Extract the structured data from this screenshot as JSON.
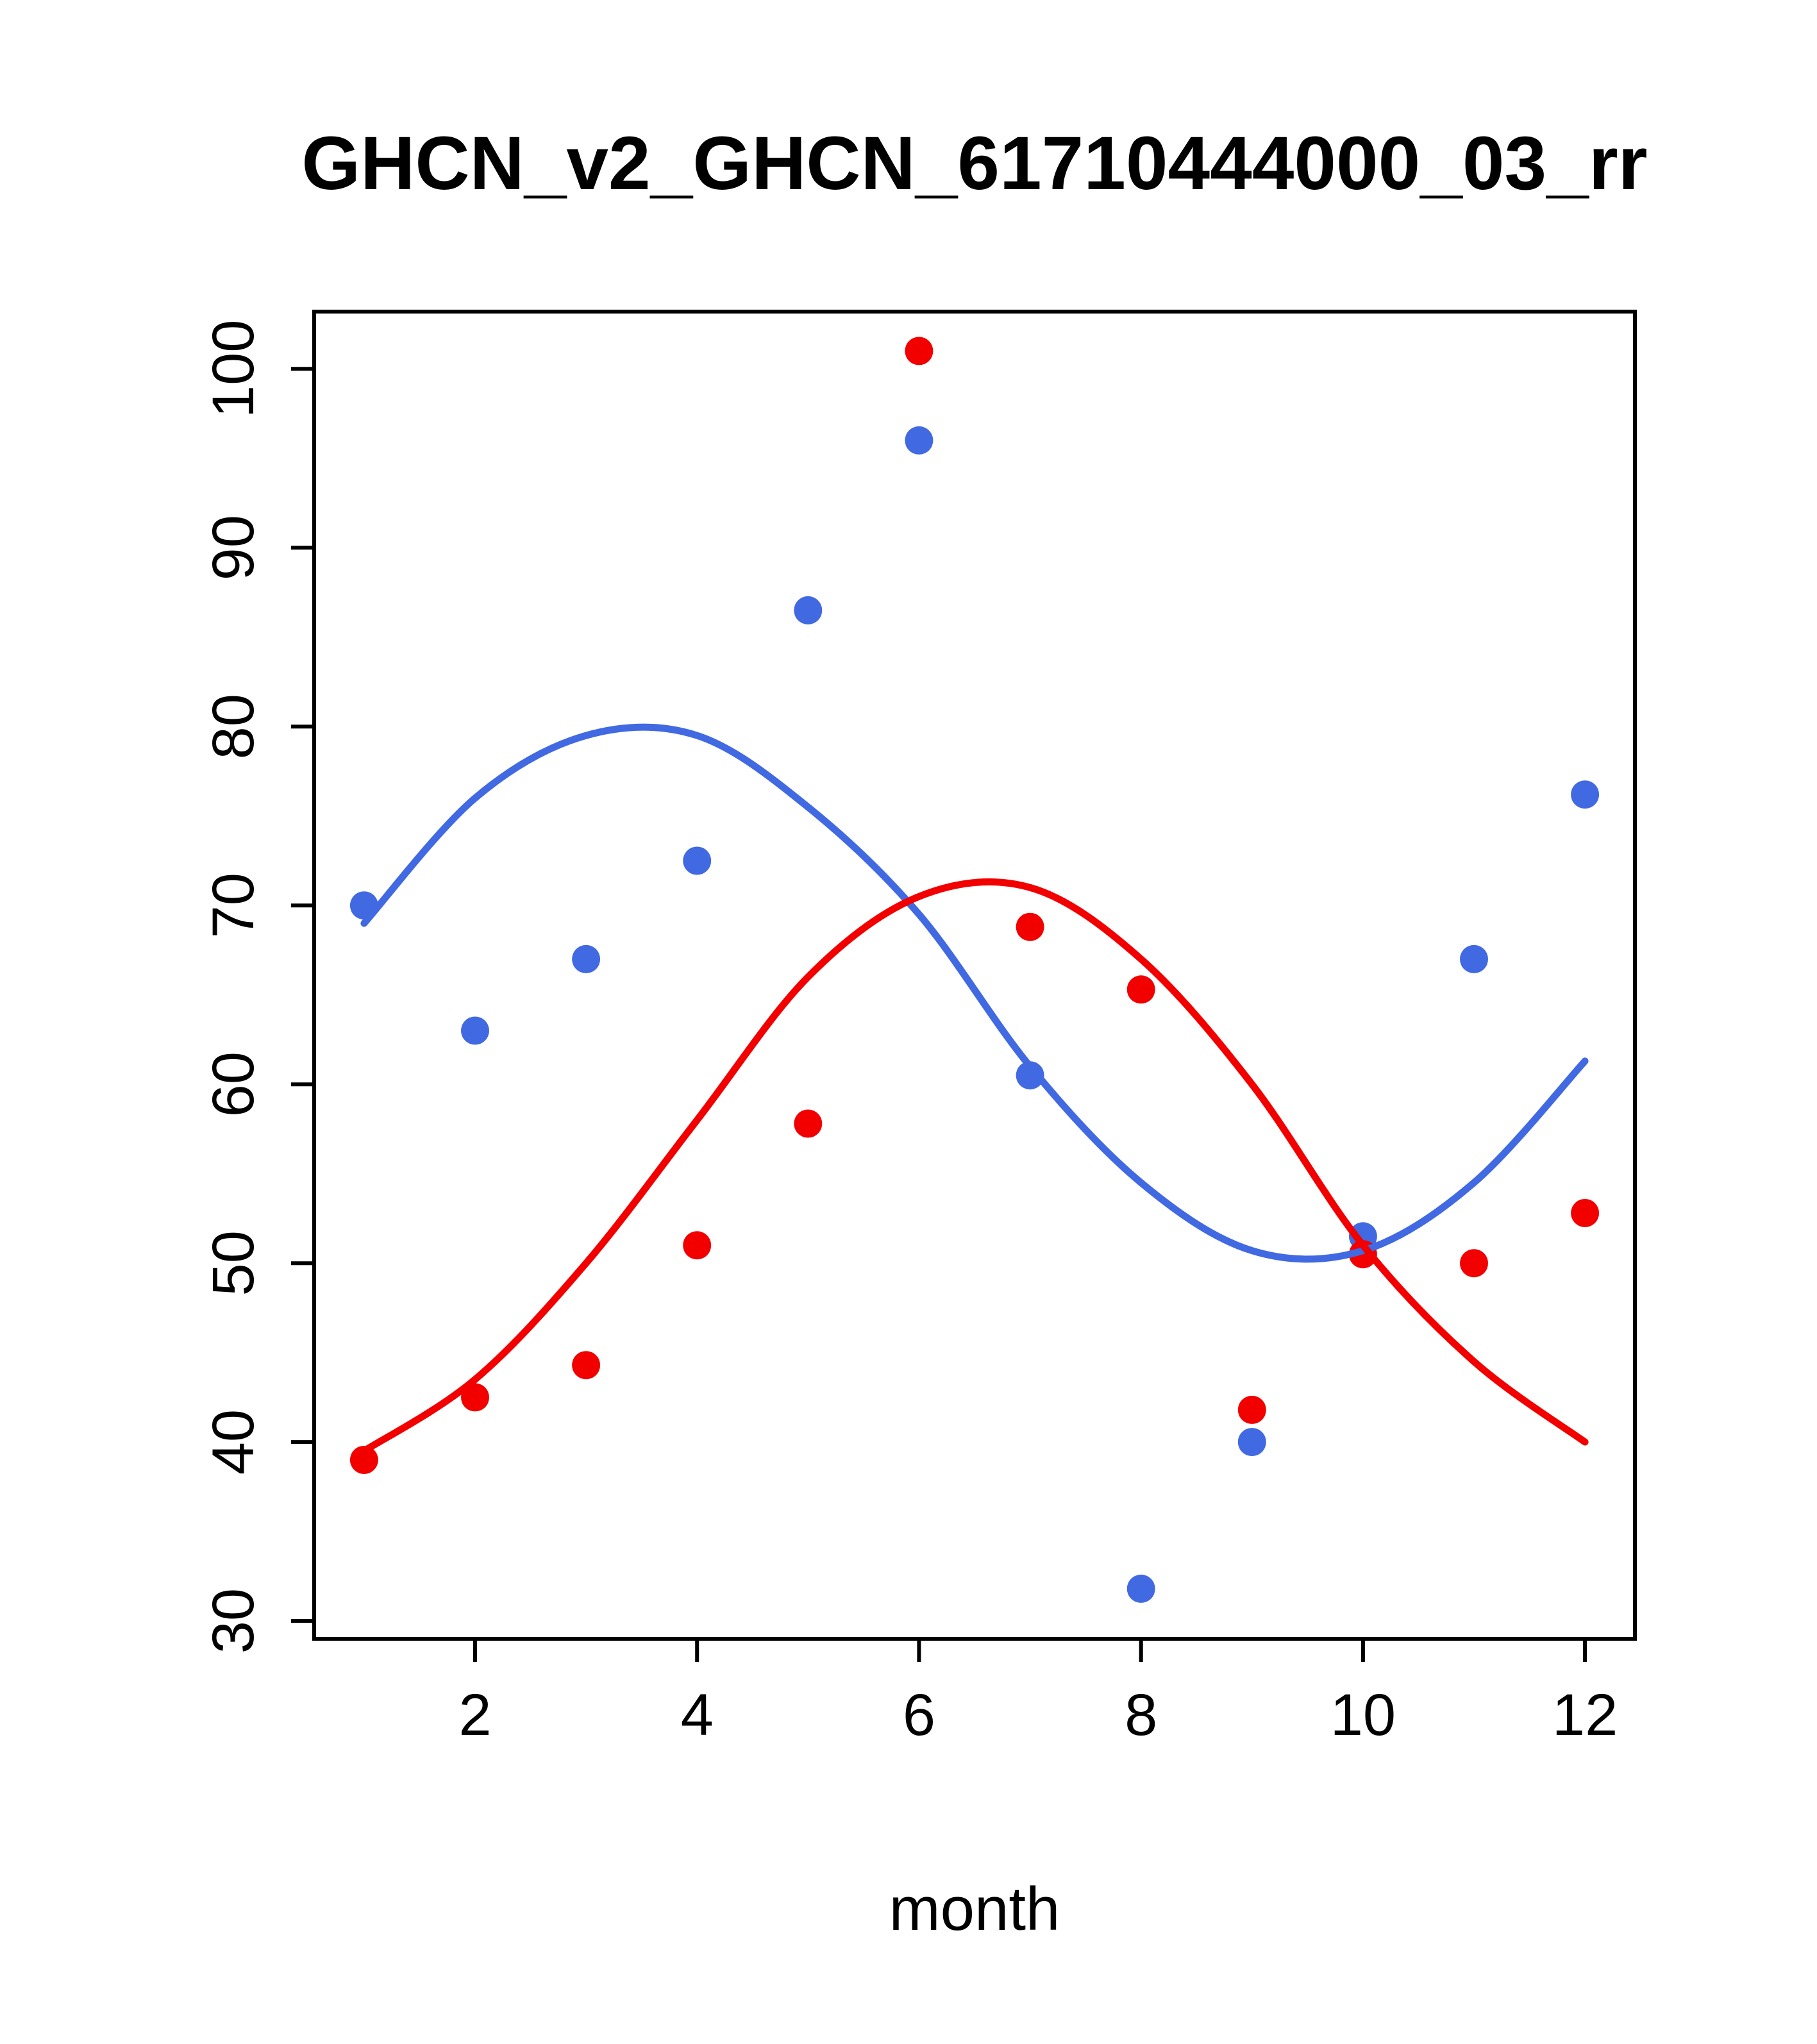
{
  "chart_data": {
    "type": "scatter",
    "title": "GHCN_v2_GHCN_61710444000_03_rr",
    "xlabel": "month",
    "ylabel": "",
    "x": [
      1,
      2,
      3,
      4,
      5,
      6,
      7,
      8,
      9,
      10,
      11,
      12
    ],
    "x_ticks": [
      2,
      4,
      6,
      8,
      10,
      12
    ],
    "y_ticks": [
      30,
      40,
      50,
      60,
      70,
      80,
      90,
      100
    ],
    "xlim": [
      0.55,
      12.45
    ],
    "ylim": [
      29.0,
      103.2
    ],
    "grid": false,
    "legend": "none",
    "series": [
      {
        "name": "blue-points",
        "type": "points",
        "color": "#4169e1",
        "values": [
          70.0,
          63.0,
          67.0,
          72.5,
          86.5,
          96.0,
          60.5,
          31.8,
          40.0,
          51.5,
          67.0,
          76.2
        ]
      },
      {
        "name": "red-points",
        "type": "points",
        "color": "#f20000",
        "values": [
          39.0,
          42.5,
          44.3,
          51.0,
          57.8,
          101.0,
          68.8,
          65.3,
          41.8,
          50.5,
          50.0,
          52.8
        ]
      },
      {
        "name": "blue-smooth-line",
        "type": "line",
        "color": "#4169e1",
        "values": [
          69.0,
          76.0,
          79.5,
          79.5,
          75.5,
          69.5,
          61.0,
          54.5,
          50.7,
          50.7,
          54.5,
          61.3
        ]
      },
      {
        "name": "red-smooth-line",
        "type": "line",
        "color": "#f20000",
        "values": [
          39.5,
          43.5,
          50.0,
          58.0,
          66.0,
          70.5,
          71.0,
          67.0,
          60.0,
          51.0,
          44.5,
          40.0
        ]
      }
    ]
  }
}
